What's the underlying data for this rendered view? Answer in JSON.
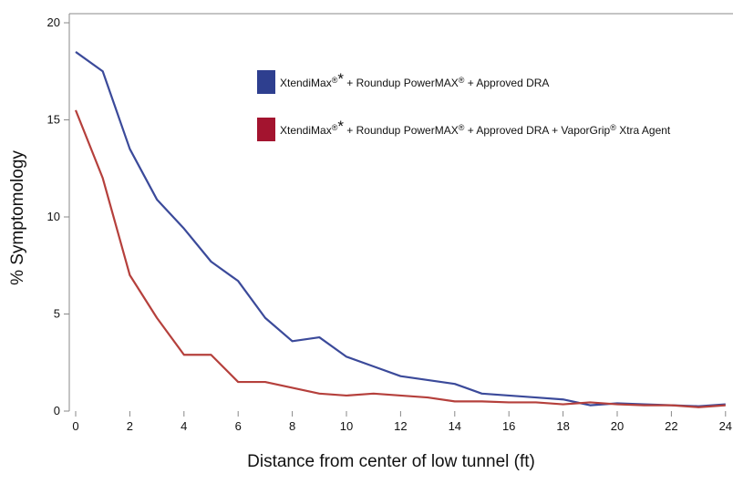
{
  "chart_data": {
    "type": "line",
    "xlabel": "Distance from center of low tunnel (ft)",
    "ylabel": "% Symptomology",
    "xlim": [
      0,
      24
    ],
    "ylim": [
      0,
      20
    ],
    "x_ticks": [
      0,
      2,
      4,
      6,
      8,
      10,
      12,
      14,
      16,
      18,
      20,
      22,
      24
    ],
    "y_ticks": [
      0,
      5,
      10,
      15,
      20
    ],
    "grid": false,
    "legend_position": "top-right",
    "x": [
      0,
      1,
      2,
      3,
      4,
      5,
      6,
      7,
      8,
      9,
      10,
      11,
      12,
      13,
      14,
      15,
      16,
      17,
      18,
      19,
      20,
      21,
      22,
      23,
      24
    ],
    "series": [
      {
        "name": "XtendiMax® * + Roundup PowerMAX® + Approved DRA",
        "legend_parts": [
          "XtendiMax",
          "®",
          "*",
          " + Roundup PowerMAX",
          "®",
          " + Approved DRA"
        ],
        "color": "#3b4a9a",
        "values": [
          18.5,
          17.5,
          13.5,
          10.9,
          9.4,
          7.7,
          6.7,
          4.8,
          3.6,
          3.8,
          2.8,
          2.3,
          1.8,
          1.6,
          1.4,
          0.9,
          0.8,
          0.7,
          0.6,
          0.3,
          0.4,
          0.35,
          0.3,
          0.25,
          0.35
        ]
      },
      {
        "name": "XtendiMax® * + Roundup PowerMAX® + Approved DRA + VaporGrip® Xtra Agent",
        "legend_parts": [
          "XtendiMax",
          "®",
          "*",
          " + Roundup PowerMAX",
          "®",
          " + Approved DRA + VaporGrip",
          "®",
          " Xtra Agent"
        ],
        "color": "#b5403c",
        "values": [
          15.5,
          12.0,
          7.0,
          4.8,
          2.9,
          2.9,
          1.5,
          1.5,
          1.2,
          0.9,
          0.8,
          0.9,
          0.8,
          0.7,
          0.5,
          0.5,
          0.45,
          0.45,
          0.35,
          0.45,
          0.35,
          0.3,
          0.3,
          0.2,
          0.3
        ]
      }
    ],
    "legend_swatch_colors": [
      "#2e3f8f",
      "#a3142f"
    ],
    "axis_color": "#888888"
  }
}
